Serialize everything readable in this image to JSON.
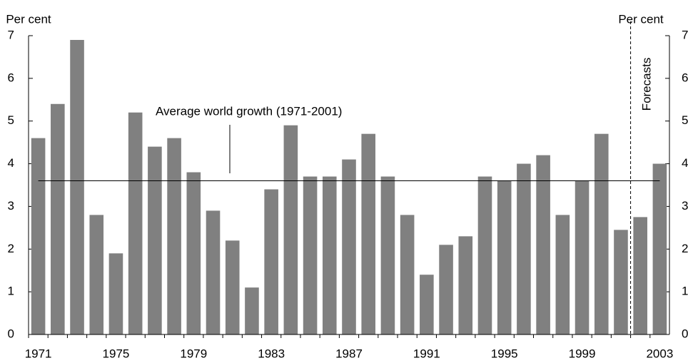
{
  "chart_data": {
    "type": "bar",
    "y_label": "Per cent",
    "y2_label": "Per cent",
    "annotation": "Average world growth (1971-2001)",
    "forecast_label": "Forecasts",
    "categories": [
      "1971",
      null,
      null,
      null,
      "1975",
      null,
      null,
      null,
      "1979",
      null,
      null,
      null,
      "1983",
      null,
      null,
      null,
      "1987",
      null,
      null,
      null,
      "1991",
      null,
      null,
      null,
      "1995",
      null,
      null,
      null,
      "1999",
      null,
      null,
      null,
      "2003"
    ],
    "values": [
      4.6,
      5.4,
      6.9,
      2.8,
      1.9,
      5.2,
      4.4,
      4.6,
      3.8,
      2.9,
      2.2,
      1.1,
      3.4,
      4.9,
      3.7,
      3.7,
      4.1,
      4.7,
      3.7,
      2.8,
      1.4,
      2.1,
      2.3,
      3.7,
      3.6,
      4.0,
      4.2,
      2.8,
      3.6,
      4.7,
      2.45,
      2.75,
      4.0
    ],
    "average": 3.6,
    "color": "#808080",
    "ylim": [
      0,
      7
    ],
    "yticks": [
      0,
      1,
      2,
      3,
      4,
      5,
      6,
      7
    ],
    "y2lim": [
      0,
      7
    ],
    "y2ticks": [
      0,
      1,
      2,
      3,
      4,
      5,
      6,
      7
    ]
  }
}
